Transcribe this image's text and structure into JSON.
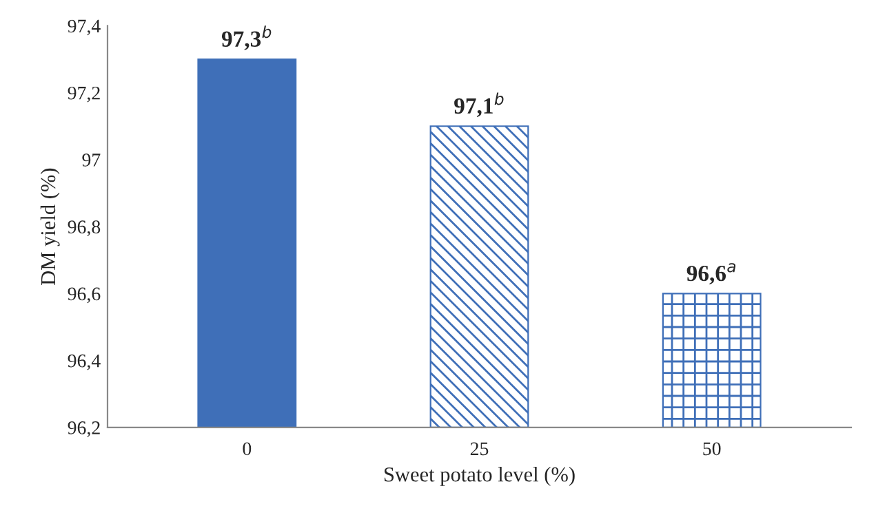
{
  "chart_data": {
    "type": "bar",
    "xlabel": "Sweet potato level (%)",
    "ylabel": "DM yield (%)",
    "categories": [
      "0",
      "25",
      "50"
    ],
    "values": [
      97.3,
      97.1,
      96.6
    ],
    "colors": [
      "#3f6fb8",
      "#3f6fb8",
      "#3f6fb8"
    ],
    "value_labels": [
      "97,3$^{b}$",
      "97,1$^{b}$",
      "96,6$^{a}$"
    ],
    "ylim": [
      96.2,
      97.4
    ],
    "yticks": [
      {
        "value": 96.2,
        "label": "96,2"
      },
      {
        "value": 96.4,
        "label": "96,4"
      },
      {
        "value": 96.6,
        "label": "96,6"
      },
      {
        "value": 96.8,
        "label": "96,8"
      },
      {
        "value": 97,
        "label": "97"
      },
      {
        "value": 97.2,
        "label": "97,2"
      },
      {
        "value": 97.4,
        "label": "97,4"
      }
    ],
    "grid": false,
    "legend": false
  }
}
